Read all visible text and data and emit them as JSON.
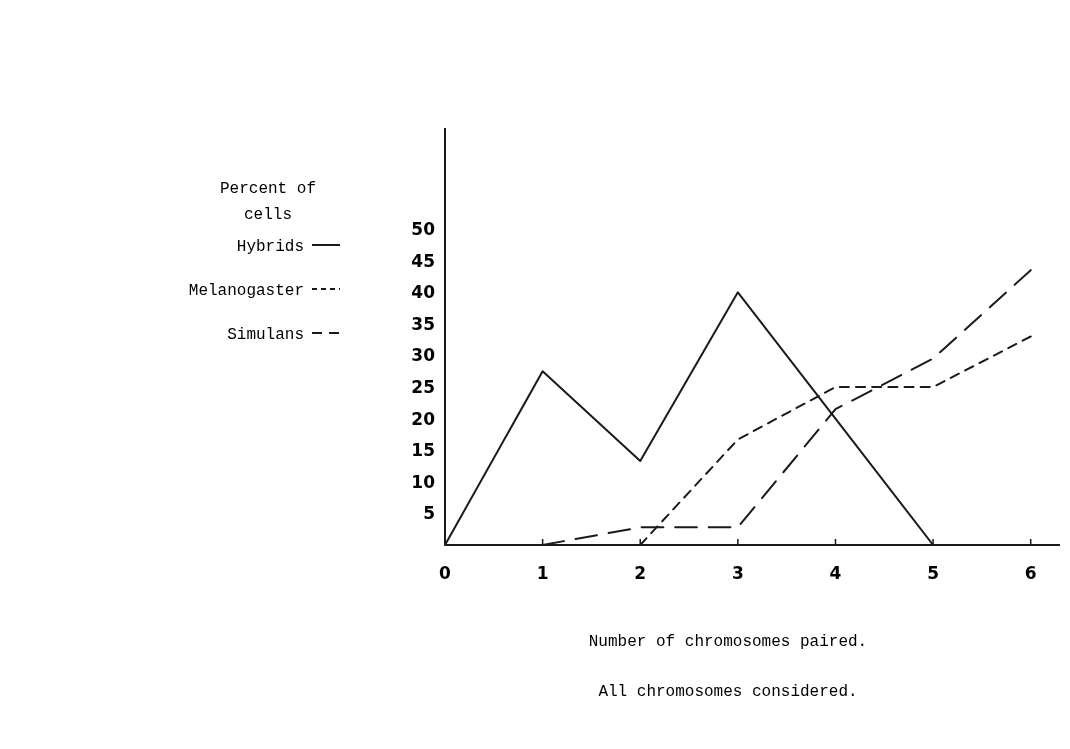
{
  "chart_data": {
    "type": "line",
    "xlabel": "Number of chromosomes paired.",
    "annotations": [
      "Percent of\ncells",
      "All chromosomes considered."
    ],
    "xlim": [
      0,
      6.3
    ],
    "ylim": [
      0,
      66
    ],
    "xticks": [
      0,
      1,
      2,
      3,
      4,
      5,
      6
    ],
    "yticks": [
      5,
      10,
      15,
      20,
      25,
      30,
      35,
      40,
      45,
      50
    ],
    "legend": "left",
    "grid": false,
    "series": [
      {
        "name": "Hybrids",
        "color": "#1a1a1a",
        "line_style": "solid",
        "x": [
          0,
          1,
          2,
          3,
          4,
          5
        ],
        "values": [
          0,
          27.5,
          13.3,
          40,
          20,
          0
        ]
      },
      {
        "name": "Melanogaster",
        "color": "#1a1a1a",
        "line_style": "dotted",
        "x": [
          2,
          3,
          4,
          5,
          6
        ],
        "values": [
          0,
          16.7,
          25,
          25,
          33
        ]
      },
      {
        "name": "Simulans",
        "color": "#1a1a1a",
        "line_style": "dashed",
        "x": [
          1,
          2,
          3,
          4,
          5,
          6
        ],
        "values": [
          0,
          2.8,
          2.8,
          21.5,
          29.5,
          43.5
        ]
      }
    ]
  }
}
